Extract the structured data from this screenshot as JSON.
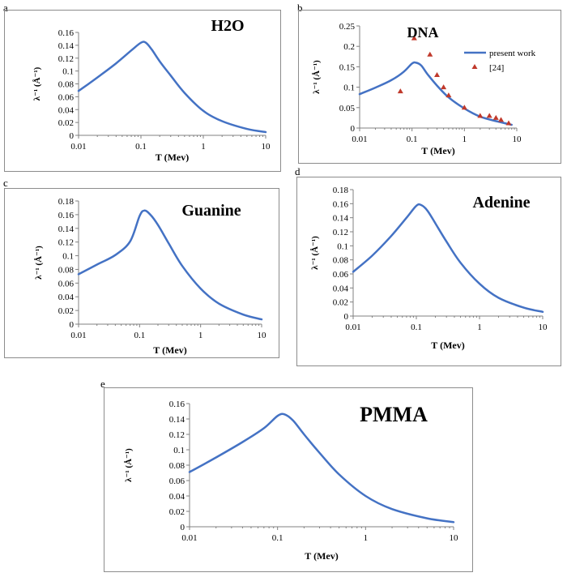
{
  "chart_data": [
    {
      "panel": "a",
      "type": "line",
      "title": "H2O",
      "xlabel": "T (Mev)",
      "ylabel": "λ⁻¹ (Å⁻¹)",
      "xscale": "log",
      "xlim": [
        0.01,
        10
      ],
      "ylim": [
        0,
        0.16
      ],
      "xticks": [
        "0.01",
        "0.1",
        "1",
        "10"
      ],
      "yticks": [
        "0",
        "0.02",
        "0.04",
        "0.06",
        "0.08",
        "0.1",
        "0.12",
        "0.14",
        "0.16"
      ],
      "series": [
        {
          "x": [
            0.01,
            0.02,
            0.04,
            0.07,
            0.1,
            0.12,
            0.15,
            0.2,
            0.3,
            0.5,
            1,
            2,
            5,
            10
          ],
          "y": [
            0.069,
            0.09,
            0.112,
            0.132,
            0.144,
            0.144,
            0.133,
            0.115,
            0.093,
            0.066,
            0.038,
            0.022,
            0.01,
            0.005
          ]
        }
      ]
    },
    {
      "panel": "b",
      "type": "line",
      "title": "DNA",
      "xlabel": "T (Mev)",
      "ylabel": "λ⁻¹ (Å⁻¹)",
      "xscale": "log",
      "xlim": [
        0.01,
        10
      ],
      "ylim": [
        0,
        0.25
      ],
      "xticks": [
        "0.01",
        "0.1",
        "1",
        "10"
      ],
      "yticks": [
        "0",
        "0.05",
        "0.1",
        "0.15",
        "0.2",
        "0.25"
      ],
      "legend_position": "top-right",
      "series": [
        {
          "name": "present work",
          "style": "line",
          "x": [
            0.01,
            0.02,
            0.04,
            0.07,
            0.1,
            0.12,
            0.15,
            0.2,
            0.3,
            0.5,
            1,
            2,
            5,
            8
          ],
          "y": [
            0.083,
            0.099,
            0.117,
            0.138,
            0.158,
            0.16,
            0.153,
            0.131,
            0.104,
            0.075,
            0.048,
            0.028,
            0.014,
            0.008
          ]
        },
        {
          "name": "[24]",
          "style": "marker",
          "x": [
            0.06,
            0.11,
            0.22,
            0.3,
            0.4,
            0.5,
            1.0,
            2.0,
            3.0,
            4.0,
            5.0,
            7.0
          ],
          "y": [
            0.09,
            0.22,
            0.18,
            0.13,
            0.1,
            0.08,
            0.05,
            0.03,
            0.03,
            0.025,
            0.02,
            0.012
          ]
        }
      ]
    },
    {
      "panel": "c",
      "type": "line",
      "title": "Guanine",
      "xlabel": "T (Mev)",
      "ylabel": "λ⁻¹ (Å⁻¹)",
      "xscale": "log",
      "xlim": [
        0.01,
        10
      ],
      "ylim": [
        0,
        0.18
      ],
      "xticks": [
        "0.01",
        "0.1",
        "1",
        "10"
      ],
      "yticks": [
        "0",
        "0.02",
        "0.04",
        "0.06",
        "0.08",
        "0.1",
        "0.12",
        "0.14",
        "0.16",
        "0.18"
      ],
      "series": [
        {
          "x": [
            0.01,
            0.02,
            0.04,
            0.07,
            0.1,
            0.12,
            0.15,
            0.2,
            0.3,
            0.5,
            1,
            2,
            5,
            10
          ],
          "y": [
            0.073,
            0.087,
            0.101,
            0.121,
            0.158,
            0.166,
            0.16,
            0.145,
            0.118,
            0.085,
            0.052,
            0.03,
            0.014,
            0.007
          ]
        }
      ]
    },
    {
      "panel": "d",
      "type": "line",
      "title": "Adenine",
      "xlabel": "T (Mev)",
      "ylabel": "λ⁻¹ (Å⁻¹)",
      "xscale": "log",
      "xlim": [
        0.01,
        10
      ],
      "ylim": [
        0,
        0.18
      ],
      "xticks": [
        "0.01",
        "0.1",
        "1",
        "10"
      ],
      "yticks": [
        "0",
        "0.02",
        "0.04",
        "0.06",
        "0.08",
        "0.1",
        "0.12",
        "0.14",
        "0.16",
        "0.18"
      ],
      "series": [
        {
          "x": [
            0.01,
            0.02,
            0.04,
            0.07,
            0.1,
            0.12,
            0.15,
            0.2,
            0.3,
            0.5,
            1,
            2,
            5,
            10
          ],
          "y": [
            0.063,
            0.086,
            0.114,
            0.14,
            0.157,
            0.158,
            0.15,
            0.132,
            0.106,
            0.076,
            0.046,
            0.026,
            0.012,
            0.006
          ]
        }
      ]
    },
    {
      "panel": "e",
      "type": "line",
      "title": "PMMA",
      "xlabel": "T (Mev)",
      "ylabel": "λ⁻¹ (Å⁻¹)",
      "xscale": "log",
      "xlim": [
        0.01,
        10
      ],
      "ylim": [
        0,
        0.16
      ],
      "xticks": [
        "0.01",
        "0.1",
        "1",
        "10"
      ],
      "yticks": [
        "0",
        "0.02",
        "0.04",
        "0.06",
        "0.08",
        "0.1",
        "0.12",
        "0.14",
        "0.16"
      ],
      "series": [
        {
          "x": [
            0.01,
            0.02,
            0.04,
            0.07,
            0.1,
            0.12,
            0.15,
            0.2,
            0.3,
            0.5,
            1,
            2,
            5,
            10
          ],
          "y": [
            0.071,
            0.09,
            0.11,
            0.128,
            0.144,
            0.146,
            0.138,
            0.12,
            0.096,
            0.068,
            0.04,
            0.023,
            0.011,
            0.006
          ]
        }
      ]
    }
  ],
  "colors": {
    "line": "#4472c4",
    "marker": "#c0392b",
    "axis": "#808080"
  }
}
